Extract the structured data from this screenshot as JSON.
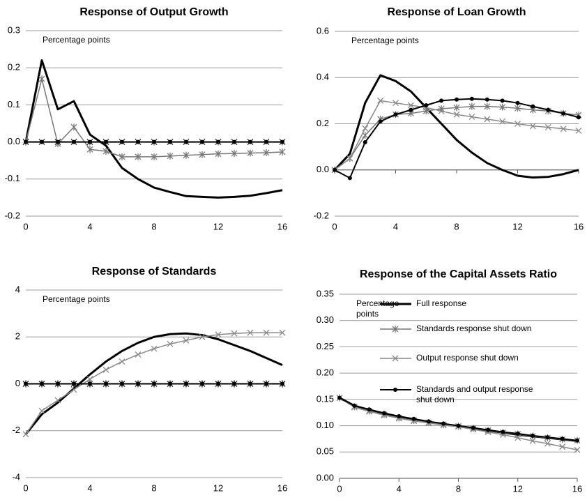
{
  "chart_data": [
    {
      "type": "line",
      "title": "Response of Output Growth",
      "annotation": "Percentage points",
      "x": [
        0,
        1,
        2,
        3,
        4,
        5,
        6,
        7,
        8,
        9,
        10,
        11,
        12,
        13,
        14,
        15,
        16
      ],
      "xlim": [
        0,
        16
      ],
      "xticks": [
        0,
        4,
        8,
        12,
        16
      ],
      "ylim": [
        -0.2,
        0.3
      ],
      "yticks": [
        0.3,
        0.2,
        0.1,
        {
          "value": 0,
          "label": "0.0"
        },
        -0.1,
        -0.2
      ],
      "grid": true,
      "legend": false,
      "series": [
        {
          "color": "#000000",
          "marker": "none",
          "width": 3,
          "values": [
            0,
            0.22,
            0.088,
            0.11,
            0.02,
            -0.01,
            -0.07,
            -0.1,
            -0.123,
            -0.135,
            -0.146,
            -0.148,
            -0.15,
            -0.148,
            -0.145,
            -0.138,
            -0.13
          ]
        },
        {
          "color": "#777777",
          "marker": "asterisk",
          "width": 1.5,
          "values": [
            0,
            0.17,
            -0.005,
            0.04,
            -0.02,
            -0.025,
            -0.04,
            -0.04,
            -0.04,
            -0.038,
            -0.036,
            -0.034,
            -0.032,
            -0.031,
            -0.03,
            -0.029,
            -0.027
          ]
        },
        {
          "color": "#222222",
          "marker": "x",
          "width": 1.5,
          "values": [
            0,
            0,
            0,
            0,
            0,
            0,
            0,
            0,
            0,
            0,
            0,
            0,
            0,
            0,
            0,
            0,
            0
          ]
        },
        {
          "color": "#000000",
          "marker": "dot",
          "width": 2,
          "values": [
            0,
            0,
            0,
            0,
            0,
            0,
            0,
            0,
            0,
            0,
            0,
            0,
            0,
            0,
            0,
            0,
            0
          ]
        }
      ]
    },
    {
      "type": "line",
      "title": "Response of Loan Growth",
      "annotation": "Percentage points",
      "x": [
        0,
        1,
        2,
        3,
        4,
        5,
        6,
        7,
        8,
        9,
        10,
        11,
        12,
        13,
        14,
        15,
        16
      ],
      "xlim": [
        0,
        16
      ],
      "xticks": [
        0,
        4,
        8,
        12,
        16
      ],
      "ylim": [
        -0.2,
        0.6
      ],
      "yticks": [
        0.6,
        0.4,
        0.2,
        {
          "value": 0,
          "label": "0.0"
        },
        -0.2
      ],
      "grid": true,
      "legend": false,
      "series": [
        {
          "color": "#000000",
          "marker": "none",
          "width": 3,
          "values": [
            0,
            0.07,
            0.29,
            0.41,
            0.385,
            0.34,
            0.27,
            0.2,
            0.13,
            0.075,
            0.03,
            0,
            -0.025,
            -0.033,
            -0.03,
            -0.018,
            0
          ]
        },
        {
          "color": "#777777",
          "marker": "asterisk",
          "width": 1.5,
          "values": [
            0,
            0.05,
            0.15,
            0.22,
            0.24,
            0.245,
            0.255,
            0.265,
            0.27,
            0.275,
            0.275,
            0.272,
            0.267,
            0.26,
            0.255,
            0.245,
            0.238
          ]
        },
        {
          "color": "#888888",
          "marker": "x",
          "width": 1.5,
          "values": [
            0,
            0.05,
            0.18,
            0.3,
            0.29,
            0.28,
            0.27,
            0.255,
            0.24,
            0.23,
            0.22,
            0.21,
            0.2,
            0.19,
            0.185,
            0.178,
            0.17
          ]
        },
        {
          "color": "#000000",
          "marker": "dot",
          "width": 2,
          "values": [
            0,
            -0.035,
            0.12,
            0.21,
            0.24,
            0.26,
            0.28,
            0.3,
            0.305,
            0.308,
            0.305,
            0.3,
            0.29,
            0.275,
            0.26,
            0.245,
            0.228
          ]
        }
      ]
    },
    {
      "type": "line",
      "title": "Response of Standards",
      "annotation": "Percentage points",
      "x": [
        0,
        1,
        2,
        3,
        4,
        5,
        6,
        7,
        8,
        9,
        10,
        11,
        12,
        13,
        14,
        15,
        16
      ],
      "xlim": [
        0,
        16
      ],
      "xticks": [
        0,
        4,
        8,
        12,
        16
      ],
      "ylim": [
        -4,
        4
      ],
      "yticks": [
        4,
        2,
        0,
        -2,
        -4
      ],
      "grid": true,
      "legend": false,
      "series": [
        {
          "color": "#000000",
          "marker": "none",
          "width": 3,
          "values": [
            -2.15,
            -1.3,
            -0.8,
            -0.2,
            0.4,
            0.95,
            1.4,
            1.75,
            2,
            2.12,
            2.15,
            2.08,
            1.9,
            1.65,
            1.4,
            1.1,
            0.8
          ]
        },
        {
          "color": "#222222",
          "marker": "asterisk",
          "width": 1.5,
          "values": [
            0,
            0,
            0,
            0,
            0,
            0,
            0,
            0,
            0,
            0,
            0,
            0,
            0,
            0,
            0,
            0,
            0
          ]
        },
        {
          "color": "#888888",
          "marker": "x",
          "width": 1.5,
          "values": [
            -2.15,
            -1.15,
            -0.7,
            -0.25,
            0.2,
            0.6,
            0.95,
            1.25,
            1.5,
            1.7,
            1.85,
            2,
            2.1,
            2.15,
            2.18,
            2.18,
            2.18
          ]
        },
        {
          "color": "#000000",
          "marker": "dot",
          "width": 2,
          "values": [
            0,
            0,
            0,
            0,
            0,
            0,
            0,
            0,
            0,
            0,
            0,
            0,
            0,
            0,
            0,
            0,
            0
          ]
        }
      ]
    },
    {
      "type": "line",
      "title": "Response of the Capital Assets Ratio",
      "annotation": "Percentage points",
      "x": [
        0,
        1,
        2,
        3,
        4,
        5,
        6,
        7,
        8,
        9,
        10,
        11,
        12,
        13,
        14,
        15,
        16
      ],
      "xlim": [
        0,
        16
      ],
      "xticks": [
        0,
        4,
        8,
        12,
        16
      ],
      "ylim": [
        0,
        0.35
      ],
      "yticks": [
        0.35,
        {
          "value": 0.3,
          "label": "0.30"
        },
        0.25,
        {
          "value": 0.2,
          "label": "0.20"
        },
        0.15,
        {
          "value": 0.1,
          "label": "0.10"
        },
        0.05,
        {
          "value": 0,
          "label": "0.00"
        }
      ],
      "grid": true,
      "legend": true,
      "series": [
        {
          "name": "Full response",
          "color": "#000000",
          "marker": "none",
          "width": 3,
          "values": [
            0.153,
            0.138,
            0.13,
            0.122,
            0.116,
            0.112,
            0.107,
            0.103,
            0.099,
            0.095,
            0.091,
            0.087,
            0.083,
            0.08,
            0.077,
            0.074,
            0.071
          ]
        },
        {
          "name": "Standards response shut down",
          "color": "#777777",
          "marker": "asterisk",
          "width": 1.5,
          "values": [
            0.153,
            0.136,
            0.128,
            0.121,
            0.115,
            0.11,
            0.106,
            0.102,
            0.099,
            0.095,
            0.091,
            0.087,
            0.084,
            0.08,
            0.077,
            0.074,
            0.072
          ]
        },
        {
          "name": "Output response shut down",
          "color": "#888888",
          "marker": "x",
          "width": 1.5,
          "values": [
            0.153,
            0.135,
            0.127,
            0.12,
            0.114,
            0.109,
            0.105,
            0.101,
            0.098,
            0.093,
            0.088,
            0.083,
            0.077,
            0.071,
            0.066,
            0.06,
            0.054
          ]
        },
        {
          "name": "Standards and output response shut down",
          "color": "#000000",
          "marker": "dot",
          "width": 2,
          "values": [
            0.153,
            0.138,
            0.131,
            0.124,
            0.118,
            0.113,
            0.108,
            0.104,
            0.1,
            0.096,
            0.092,
            0.088,
            0.085,
            0.081,
            0.078,
            0.075,
            0.072
          ]
        }
      ]
    }
  ]
}
